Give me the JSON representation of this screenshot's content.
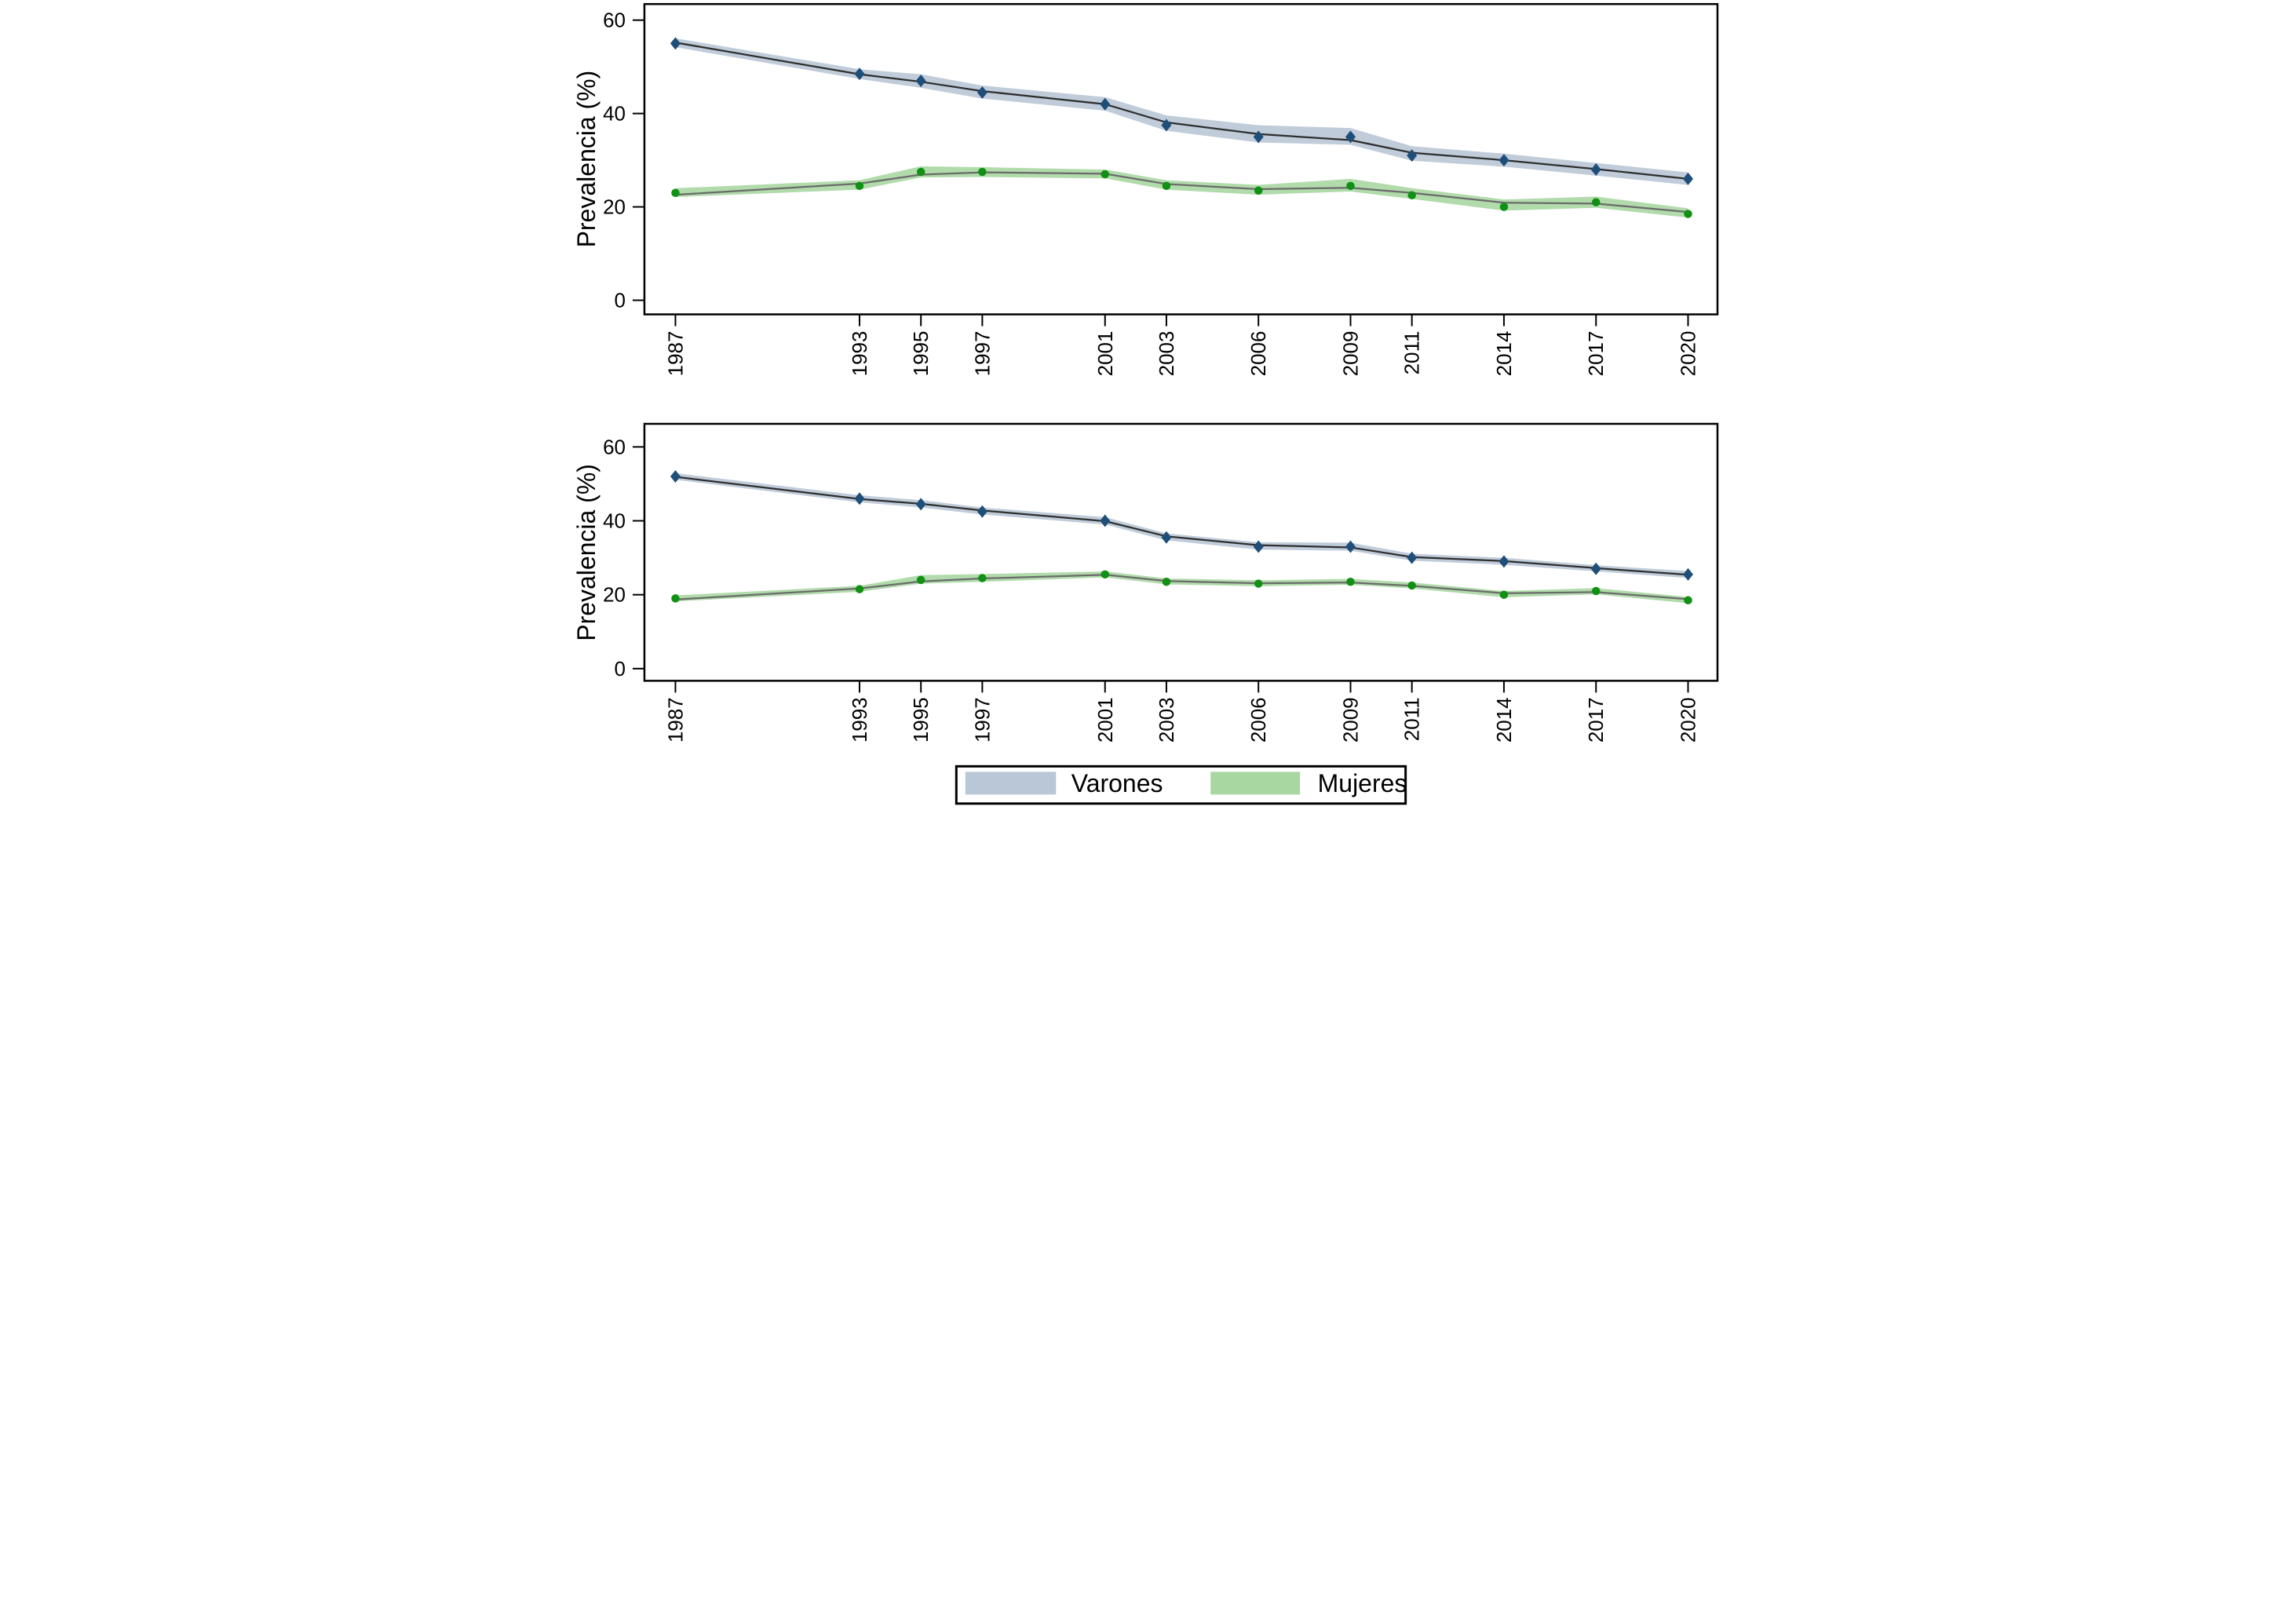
{
  "figure": {
    "ylabel": "Prevalencia (%)",
    "background": "#ffffff",
    "axis_color": "#000000"
  },
  "legend": {
    "position": "bottom-center",
    "items": [
      {
        "label": "Varones",
        "color": "#b9c7d6"
      },
      {
        "label": "Mujeres",
        "color": "#a9d7a2"
      }
    ]
  },
  "chart_data": [
    {
      "type": "line",
      "panel": "top",
      "title": "",
      "xlabel": "",
      "ylabel": "Prevalencia (%)",
      "x": [
        1987,
        1993,
        1995,
        1997,
        2001,
        2003,
        2006,
        2009,
        2011,
        2014,
        2017,
        2020
      ],
      "x_tick_labels": [
        "1987",
        "1993",
        "1995",
        "1997",
        "2001",
        "2003",
        "2006",
        "2009",
        "2011",
        "2014",
        "2017",
        "2020"
      ],
      "ylim": [
        0,
        60
      ],
      "yticks": [
        0,
        20,
        40,
        60
      ],
      "grid": false,
      "series": [
        {
          "name": "Varones",
          "marker": "diamond",
          "marker_color": "#1f4e79",
          "line_color": "#2e2e2e",
          "band_color": "#b9c7d6",
          "values": [
            55,
            48.5,
            47,
            44.5,
            42,
            37.5,
            35,
            35,
            31,
            30,
            28,
            26
          ],
          "trend": [
            55.2,
            48.4,
            46.8,
            44.8,
            42.0,
            38.1,
            35.6,
            34.3,
            31.6,
            30.0,
            28.1,
            26.0
          ],
          "ci_upper": [
            56.1,
            49.5,
            48.4,
            46.0,
            43.5,
            39.6,
            37.5,
            36.9,
            33.0,
            31.4,
            29.4,
            27.4
          ],
          "ci_lower": [
            54.2,
            47.4,
            45.5,
            43.2,
            40.6,
            36.3,
            33.8,
            33.3,
            29.9,
            28.6,
            26.7,
            24.7
          ]
        },
        {
          "name": "Mujeres",
          "marker": "circle",
          "marker_color": "#119113",
          "line_color": "#6b6b6b",
          "band_color": "#a9d7a2",
          "values": [
            23,
            24.5,
            27.5,
            27.5,
            27,
            24.5,
            23.5,
            24.5,
            22.5,
            20,
            21,
            18.5
          ],
          "trend": [
            22.6,
            25.0,
            26.9,
            27.4,
            27.1,
            24.9,
            23.8,
            24.1,
            23.0,
            20.9,
            20.7,
            18.9
          ],
          "ci_upper": [
            24.0,
            25.7,
            28.7,
            28.5,
            28.0,
            25.7,
            24.7,
            26.0,
            24.0,
            21.6,
            22.2,
            19.7
          ],
          "ci_lower": [
            22.1,
            23.7,
            26.3,
            26.4,
            26.1,
            23.7,
            22.6,
            23.3,
            21.7,
            19.2,
            19.8,
            17.7
          ]
        }
      ]
    },
    {
      "type": "line",
      "panel": "bottom",
      "title": "",
      "xlabel": "",
      "ylabel": "Prevalencia (%)",
      "x": [
        1987,
        1993,
        1995,
        1997,
        2001,
        2003,
        2006,
        2009,
        2011,
        2014,
        2017,
        2020
      ],
      "x_tick_labels": [
        "1987",
        "1993",
        "1995",
        "1997",
        "2001",
        "2003",
        "2006",
        "2009",
        "2011",
        "2014",
        "2017",
        "2020"
      ],
      "ylim": [
        0,
        60
      ],
      "yticks": [
        0,
        20,
        40,
        60
      ],
      "grid": false,
      "series": [
        {
          "name": "Varones",
          "marker": "diamond",
          "marker_color": "#1f4e79",
          "line_color": "#2e2e2e",
          "band_color": "#b9c7d6",
          "values": [
            52,
            46,
            44.5,
            42.5,
            40,
            35.5,
            33,
            33,
            30,
            29,
            27,
            25.5
          ],
          "trend": [
            51.9,
            45.9,
            44.6,
            42.8,
            39.9,
            35.8,
            33.4,
            32.8,
            30.2,
            29.1,
            27.2,
            25.4
          ],
          "ci_upper": [
            52.9,
            46.9,
            45.6,
            43.6,
            41.0,
            36.6,
            34.2,
            34.1,
            31.1,
            30.0,
            28.0,
            26.4
          ],
          "ci_lower": [
            51.1,
            45.0,
            43.6,
            41.7,
            39.0,
            34.7,
            32.2,
            31.9,
            29.2,
            28.1,
            26.3,
            24.5
          ]
        },
        {
          "name": "Mujeres",
          "marker": "circle",
          "marker_color": "#119113",
          "line_color": "#6b6b6b",
          "band_color": "#a9d7a2",
          "values": [
            19,
            21.5,
            24,
            24.5,
            25.5,
            23.5,
            23,
            23.5,
            22.5,
            20,
            21,
            18.5
          ],
          "trend": [
            18.7,
            21.7,
            23.6,
            24.4,
            25.4,
            23.7,
            23.1,
            23.3,
            22.4,
            20.4,
            20.7,
            18.8
          ],
          "ci_upper": [
            19.8,
            22.4,
            25.3,
            25.6,
            26.3,
            24.4,
            23.9,
            24.3,
            23.3,
            21.0,
            21.8,
            19.4
          ],
          "ci_lower": [
            18.2,
            20.8,
            23.0,
            23.5,
            24.7,
            22.8,
            22.3,
            22.7,
            21.7,
            19.3,
            20.1,
            17.7
          ]
        }
      ]
    }
  ]
}
